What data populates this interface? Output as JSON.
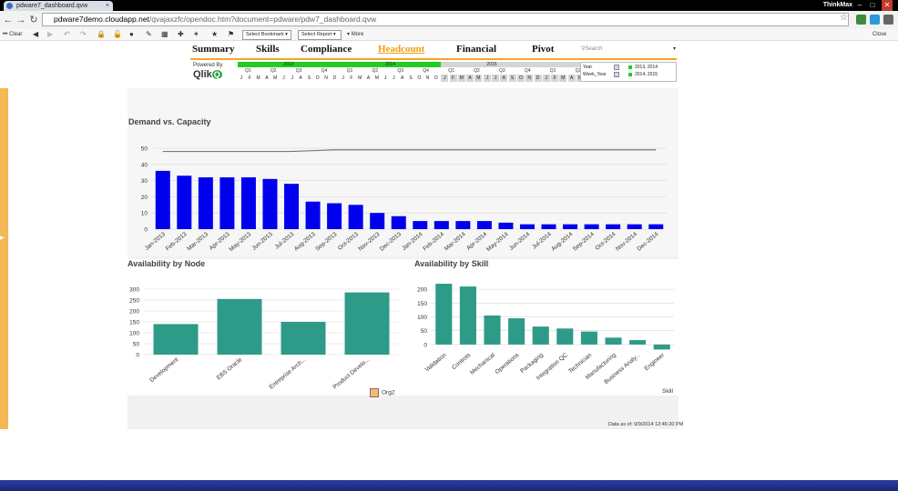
{
  "browser": {
    "tab_title": "pdware7_dashboard.qvw",
    "user_label": "ThinkMax",
    "url_domain": "pdware7demo.cloudapp.net",
    "url_rest": "/qvajaxzfc/opendoc.htm?document=pdware/pdw7_dashboard.qvw",
    "min_label": "–",
    "max_label": "□",
    "close_label": "✕"
  },
  "toolbar": {
    "clear_label": "Clear",
    "bookmark_label": "Select Bookmark",
    "report_label": "Select Report",
    "more_label": "More",
    "close_label": "Close"
  },
  "nav": {
    "tabs": [
      {
        "label": "Summary"
      },
      {
        "label": "Skills"
      },
      {
        "label": "Compliance"
      },
      {
        "label": "Headcount"
      },
      {
        "label": "Financial"
      },
      {
        "label": "Pivot"
      }
    ],
    "active_index": 3,
    "search_placeholder": "Search"
  },
  "branding": {
    "powered_by": "Powered By",
    "logo_text": "Qlik"
  },
  "calendar": {
    "years": [
      "2013",
      "2014",
      "2015",
      "2016"
    ],
    "quarters": [
      "Q1",
      "Q2",
      "Q3",
      "Q4",
      "Q1",
      "Q2",
      "Q3",
      "Q4",
      "Q1",
      "Q2",
      "Q3",
      "Q4",
      "Q1",
      "Q2",
      "Q3",
      "Q4"
    ],
    "months": [
      "J",
      "F",
      "M",
      "A",
      "M",
      "J",
      "J",
      "A",
      "S",
      "O",
      "N",
      "D"
    ],
    "selected_color": "#22cc22",
    "unselected_color": "#d5d5d5"
  },
  "current_selections": {
    "rows": [
      {
        "field": "Year",
        "value": "2013, 2014"
      },
      {
        "field": "Week_Year",
        "value": "2014, 2015"
      }
    ]
  },
  "charts": {
    "demand": {
      "title": "Demand vs. Capacity",
      "chart_data": {
        "type": "bar",
        "categories": [
          "Jan-2013",
          "Feb-2013",
          "Mar-2013",
          "Apr-2013",
          "May-2013",
          "Jun-2013",
          "Jul-2013",
          "Aug-2013",
          "Sep-2013",
          "Oct-2013",
          "Nov-2013",
          "Dec-2013",
          "Jan-2014",
          "Feb-2014",
          "Mar-2014",
          "Apr-2014",
          "May-2014",
          "Jun-2014",
          "Jul-2014",
          "Aug-2014",
          "Sep-2014",
          "Oct-2014",
          "Nov-2014",
          "Dec-2014"
        ],
        "values": [
          36,
          33,
          32,
          32,
          32,
          31,
          28,
          17,
          16,
          15,
          10,
          8,
          5,
          5,
          5,
          5,
          4,
          3,
          3,
          3,
          3,
          3,
          3,
          3
        ],
        "line_values": [
          48,
          48,
          48,
          48,
          48,
          48,
          48,
          48.5,
          49,
          49,
          49,
          49,
          49,
          49,
          49,
          49,
          49,
          49,
          49,
          49,
          49,
          49,
          49,
          49
        ],
        "ylim": [
          0,
          50
        ],
        "yticks": [
          0,
          10,
          20,
          30,
          40,
          50
        ],
        "bar_color": "#0000ee",
        "line_color": "#777777"
      }
    },
    "node": {
      "title": "Availability by Node",
      "chart_data": {
        "type": "bar",
        "categories": [
          "Development",
          "EBS Oracle",
          "Entreprise Arch...",
          "Product Develo..."
        ],
        "values": [
          140,
          255,
          150,
          285
        ],
        "ylim": [
          0,
          300
        ],
        "yticks": [
          0,
          50,
          100,
          150,
          200,
          250,
          300
        ],
        "bar_color": "#2e9a88"
      },
      "dimension_label": "Org2"
    },
    "skill": {
      "title": "Availability by Skill",
      "chart_data": {
        "type": "bar",
        "categories": [
          "Validation",
          "Controls",
          "Mechanical",
          "Operations",
          "Packaging",
          "Integration QC",
          "Technician",
          "Manufacturing",
          "Business Analy...",
          "Engineer"
        ],
        "values": [
          220,
          210,
          105,
          95,
          65,
          58,
          47,
          25,
          16,
          -18
        ],
        "ylim": [
          -20,
          230
        ],
        "yticks": [
          0,
          50,
          100,
          150,
          200
        ],
        "bar_color": "#2e9a88"
      },
      "dimension_label": "Skill"
    }
  },
  "footer": {
    "data_as_of": "Data as of: 9/9/2014 12:46:20 PM"
  }
}
